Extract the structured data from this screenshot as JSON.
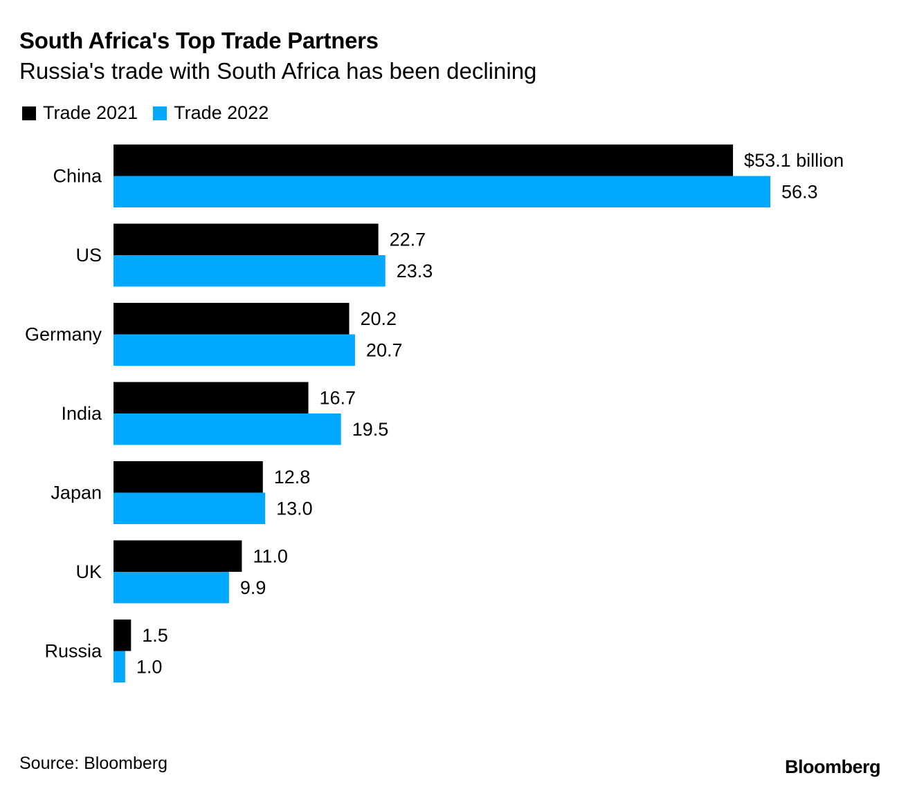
{
  "chart_data": {
    "type": "bar",
    "orientation": "horizontal",
    "title": "South Africa's Top Trade Partners",
    "subtitle": "Russia's trade with South Africa has been declining",
    "categories": [
      "China",
      "US",
      "Germany",
      "India",
      "Japan",
      "UK",
      "Russia"
    ],
    "series": [
      {
        "name": "Trade 2021",
        "color": "#000000",
        "values": [
          53.1,
          22.7,
          20.2,
          16.7,
          12.8,
          11.0,
          1.5
        ],
        "labels": [
          "$53.1 billion",
          "22.7",
          "20.2",
          "16.7",
          "12.8",
          "11.0",
          "1.5"
        ]
      },
      {
        "name": "Trade 2022",
        "color": "#00a9ff",
        "values": [
          56.3,
          23.3,
          20.7,
          19.5,
          13.0,
          9.9,
          1.0
        ],
        "labels": [
          "56.3",
          "23.3",
          "20.7",
          "19.5",
          "13.0",
          "9.9",
          "1.0"
        ]
      }
    ],
    "xlim": [
      0,
      56.3
    ],
    "xlabel": "",
    "ylabel": "",
    "grid": false,
    "legend_position": "top-left"
  },
  "legend": {
    "item_1": "Trade 2021",
    "item_2": "Trade 2022"
  },
  "footer": {
    "source": "Source: Bloomberg",
    "brand": "Bloomberg"
  }
}
